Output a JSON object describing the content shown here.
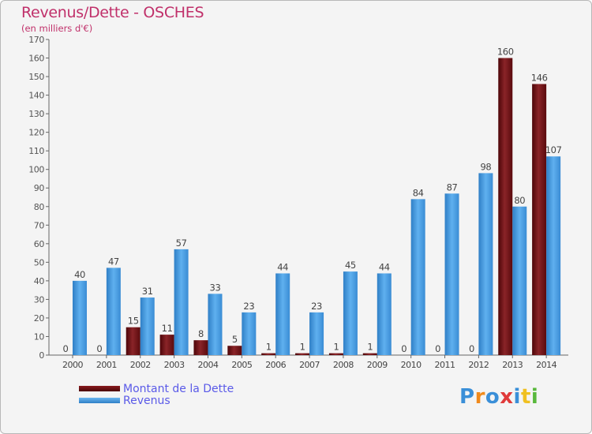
{
  "title": "Revenus/Dette - OSCHES",
  "subtitle": "(en milliers d'€)",
  "legend": [
    {
      "label": "Montant de la Dette",
      "color": "#6e0c10"
    },
    {
      "label": "Revenus",
      "color": "#3d8fd6"
    }
  ],
  "logo": {
    "text": "Proxiti",
    "letters": [
      "P",
      "r",
      "o",
      "x",
      "i",
      "t",
      "i"
    ]
  },
  "chart_data": {
    "type": "bar",
    "title": "Revenus/Dette - OSCHES",
    "ylabel": "(en milliers d'€)",
    "xlabel": "",
    "ylim": [
      0,
      170
    ],
    "yticks": [
      0,
      10,
      20,
      30,
      40,
      50,
      60,
      70,
      80,
      90,
      100,
      110,
      120,
      130,
      140,
      150,
      160,
      170
    ],
    "grid": false,
    "legend_position": "bottom-left",
    "categories": [
      "2000",
      "2001",
      "2002",
      "2003",
      "2004",
      "2005",
      "2006",
      "2007",
      "2008",
      "2009",
      "2010",
      "2011",
      "2012",
      "2013",
      "2014"
    ],
    "series": [
      {
        "name": "Montant de la Dette",
        "color": "#6e0c10",
        "values": [
          0,
          0,
          15,
          11,
          8,
          5,
          1,
          1,
          1,
          1,
          0,
          0,
          0,
          160,
          146
        ]
      },
      {
        "name": "Revenus",
        "color": "#3d8fd6",
        "values": [
          40,
          47,
          31,
          57,
          33,
          23,
          44,
          23,
          45,
          44,
          84,
          87,
          98,
          80,
          107
        ]
      }
    ]
  }
}
